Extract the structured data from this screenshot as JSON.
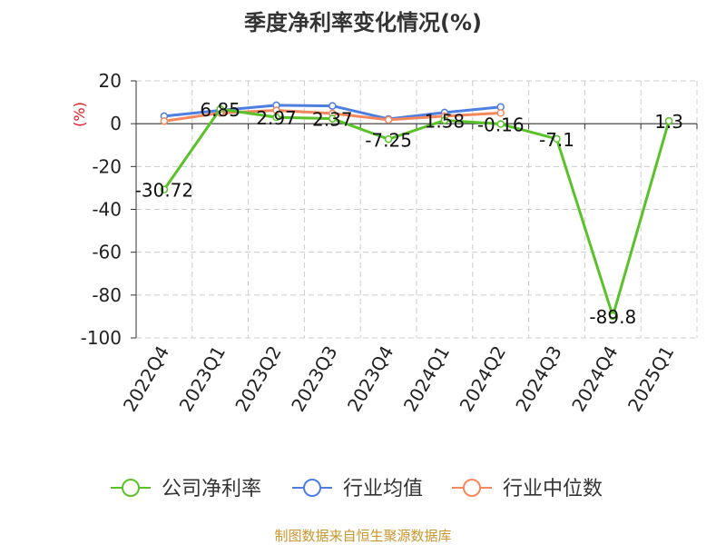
{
  "chart_data": {
    "type": "line",
    "title": "季度净利率变化情况(%)",
    "ylabel": "(%)",
    "xlabel": "",
    "categories": [
      "2022Q4",
      "2023Q1",
      "2023Q2",
      "2023Q3",
      "2023Q4",
      "2024Q1",
      "2024Q2",
      "2024Q3",
      "2024Q4",
      "2025Q1"
    ],
    "yticks": [
      "20",
      "0",
      "-20",
      "-40",
      "-60",
      "-80",
      "-100"
    ],
    "ylim": [
      -100,
      20
    ],
    "grid": true,
    "legend_position": "bottom",
    "series": [
      {
        "name": "公司净利率",
        "color": "#5ac229",
        "values": [
          -30.72,
          6.85,
          2.97,
          2.37,
          -7.25,
          1.58,
          -0.16,
          -7.1,
          -89.8,
          1.3
        ],
        "labels": [
          "-30.72",
          "6.85",
          "2.97",
          "2.37",
          "-7.25",
          "1.58",
          "-0.16",
          "-7.1",
          "-89.8",
          "1.3"
        ]
      },
      {
        "name": "行业均值",
        "color": "#4e7ee0",
        "values": [
          3.5,
          6.2,
          8.6,
          8.3,
          2.2,
          5.2,
          7.8,
          null,
          null,
          null
        ]
      },
      {
        "name": "行业中位数",
        "color": "#f4875d",
        "values": [
          1.2,
          5.0,
          6.2,
          4.8,
          1.8,
          3.5,
          5.0,
          null,
          null,
          null
        ]
      }
    ]
  },
  "source": "制图数据来自恒生聚源数据库"
}
